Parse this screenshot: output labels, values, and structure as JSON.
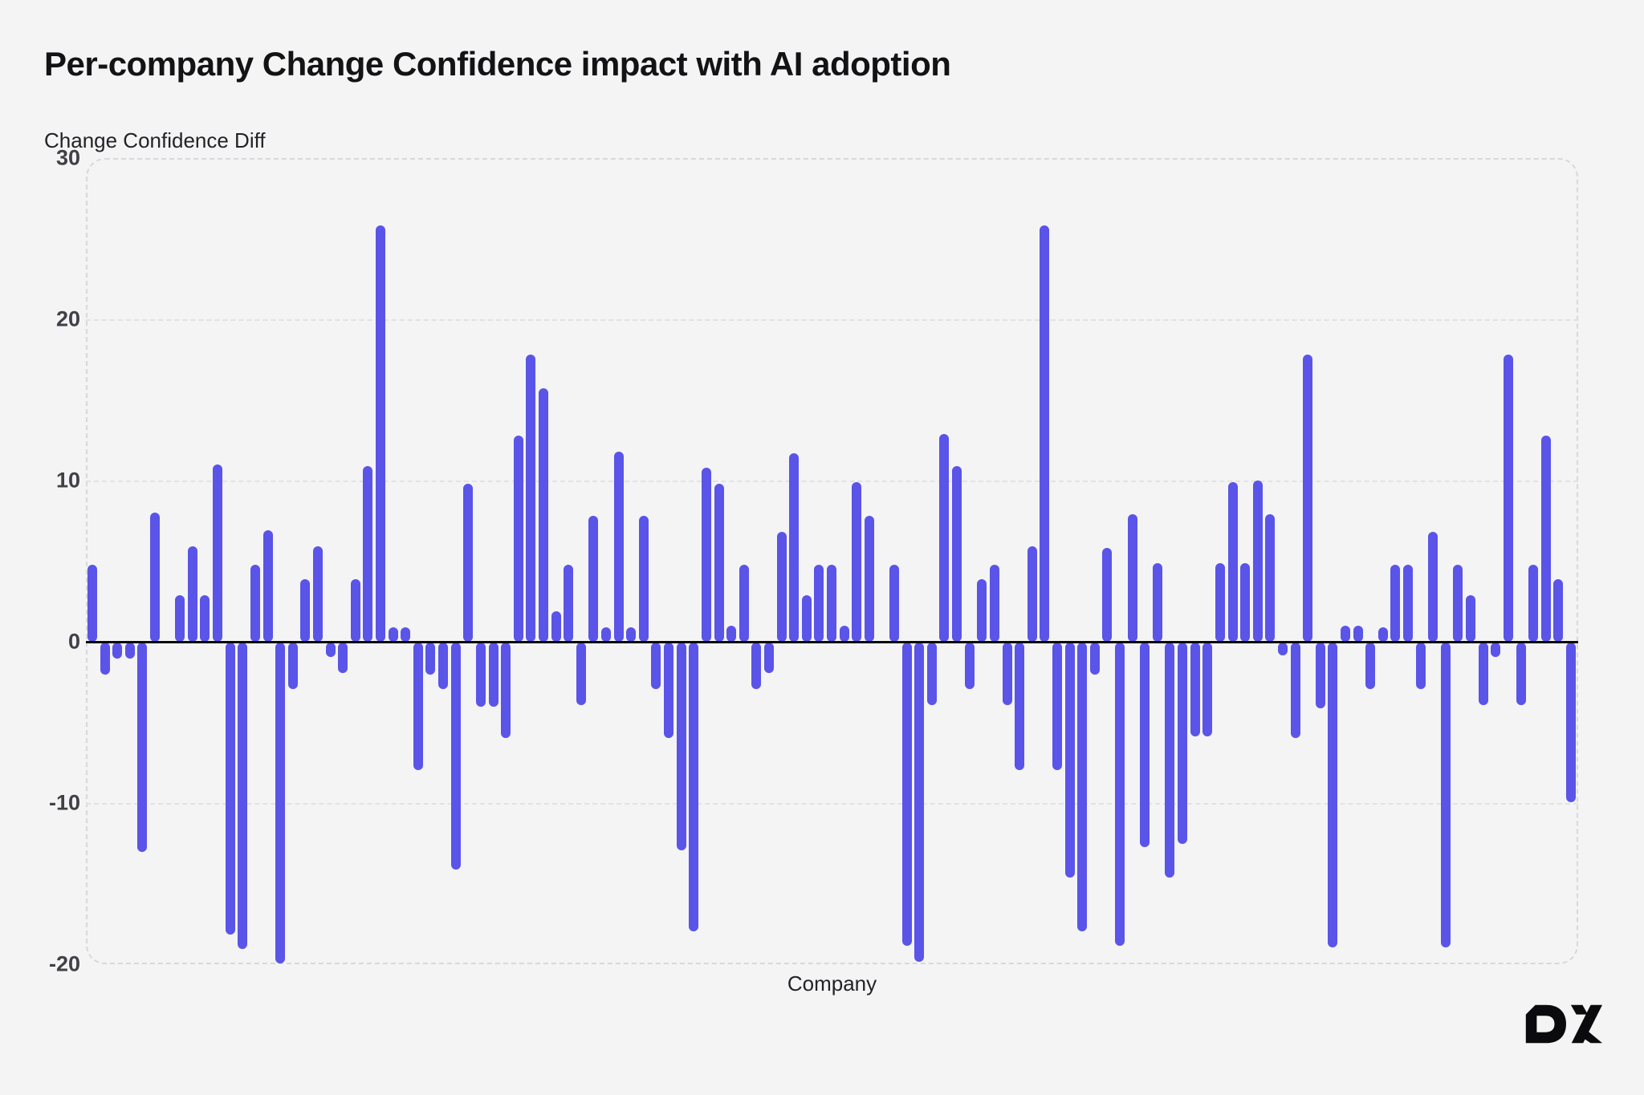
{
  "page": {
    "background": "#f4f4f5"
  },
  "header": {
    "title": "Per-company Change Confidence impact with AI adoption"
  },
  "logo": {
    "text": "DX",
    "color": "#0b0b0d"
  },
  "chart_data": {
    "type": "bar",
    "title": "Per-company Change Confidence impact with AI adoption",
    "xlabel": "Company",
    "ylabel": "Change Confidence Diff",
    "yticks": [
      30,
      20,
      10,
      0,
      -10,
      -20
    ],
    "ylim": [
      -20,
      30
    ],
    "grid": "horizontal-dashed",
    "legend": "none",
    "background": "#f4f4f5",
    "bar_color": "#5a54e8",
    "zero_axis_color": "#0a0a0c",
    "values": [
      4.8,
      -2,
      -1,
      -1,
      -13,
      8,
      0,
      2.9,
      5.9,
      2.9,
      11,
      -18.1,
      -19,
      4.8,
      6.9,
      -19.9,
      -2.9,
      3.9,
      5.9,
      -0.9,
      -1.9,
      3.9,
      10.9,
      25.8,
      0.9,
      0.9,
      -7.9,
      -2,
      -2.9,
      -14.1,
      9.8,
      -4,
      -4,
      -5.9,
      12.8,
      17.8,
      15.7,
      1.9,
      4.8,
      -3.9,
      7.8,
      0.9,
      11.8,
      0.9,
      7.8,
      -2.9,
      -5.9,
      -12.9,
      -17.9,
      10.8,
      9.8,
      1,
      4.8,
      -2.9,
      -1.9,
      6.8,
      11.7,
      2.9,
      4.8,
      4.8,
      1,
      9.9,
      7.8,
      0,
      4.8,
      -18.8,
      -19.8,
      -3.9,
      12.9,
      10.9,
      -2.9,
      3.9,
      4.8,
      -3.9,
      -7.9,
      5.9,
      25.8,
      -7.9,
      -14.6,
      -17.9,
      -2,
      5.8,
      -18.8,
      7.9,
      -12.7,
      4.9,
      -14.6,
      -12.5,
      -5.8,
      -5.8,
      4.9,
      9.9,
      4.9,
      10,
      7.9,
      -0.8,
      -5.9,
      17.8,
      -4.1,
      -18.9,
      1,
      1,
      -2.9,
      0.9,
      4.8,
      4.8,
      -2.9,
      6.8,
      -18.9,
      4.8,
      2.9,
      -3.9,
      -0.9,
      17.8,
      -3.9,
      4.8,
      12.8,
      3.9,
      -9.9
    ]
  }
}
